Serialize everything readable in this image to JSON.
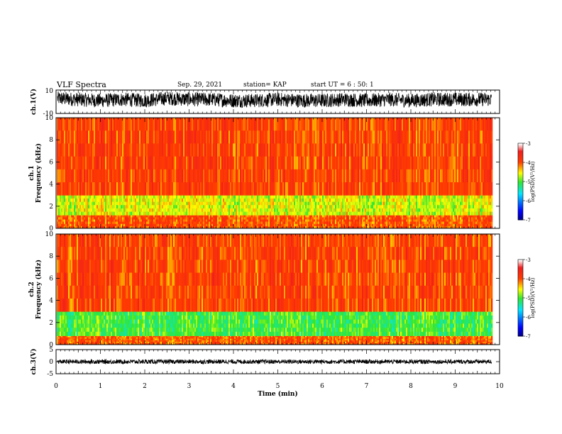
{
  "header": {
    "title": "VLF Spectra",
    "date": "Sep. 29, 2021",
    "station": "station= KAP",
    "start": "start UT =  6 : 50: 1"
  },
  "chart_data": [
    {
      "type": "line",
      "panel": "ch1-waveform",
      "ylabel": "ch.1(V)",
      "ylim": [
        -10,
        10
      ],
      "yticks": [
        "10",
        "-10"
      ],
      "xlim": [
        0,
        10
      ],
      "x": [
        0,
        0.5,
        1,
        1.5,
        2,
        2.5,
        3,
        3.5,
        4,
        4.5,
        5,
        5.5,
        6,
        6.5,
        7,
        7.5,
        8,
        8.5,
        9,
        9.5,
        9.82
      ],
      "y": [
        3,
        2,
        1,
        2,
        1,
        3,
        2,
        2,
        1,
        1,
        2,
        1,
        1,
        2,
        1,
        2,
        1,
        2,
        2,
        2,
        2
      ],
      "envelope_amplitude": 6,
      "color": "#000000"
    },
    {
      "type": "heatmap",
      "panel": "ch1-spectrogram",
      "ylabel": "ch.1\nFrequency (kHz)",
      "ylabel_line1": "ch.1",
      "ylabel_line2": "Frequency (kHz)",
      "ylim": [
        0,
        10
      ],
      "yticks": [
        "0",
        "2",
        "4",
        "6",
        "8",
        "10"
      ],
      "xlim": [
        0,
        10
      ],
      "data_end_min": 9.82,
      "colorscale": {
        "min": -7,
        "max": -3,
        "label": "log(PSD)(V²/Hz)",
        "ticks": [
          "-3",
          "-4",
          "-5",
          "-6",
          "-7"
        ]
      },
      "bands_khz": [
        {
          "from": 0.0,
          "to": 1.2,
          "level": -4.0
        },
        {
          "from": 1.2,
          "to": 3.0,
          "level": -4.6
        },
        {
          "from": 3.0,
          "to": 10.0,
          "level": -3.9
        }
      ]
    },
    {
      "type": "heatmap",
      "panel": "ch2-spectrogram",
      "ylabel": "ch.2\nFrequency (kHz)",
      "ylabel_line1": "ch.2",
      "ylabel_line2": "Frequency (kHz)",
      "ylim": [
        0,
        10
      ],
      "yticks": [
        "0",
        "2",
        "4",
        "6",
        "8",
        "10"
      ],
      "xlim": [
        0,
        10
      ],
      "data_end_min": 9.82,
      "colorscale": {
        "min": -7,
        "max": -3,
        "label": "log(PSD)(V²/Hz)",
        "ticks": [
          "-3",
          "-4",
          "-5",
          "-6",
          "-7"
        ]
      },
      "bands_khz": [
        {
          "from": 0.0,
          "to": 0.8,
          "level": -4.0
        },
        {
          "from": 0.8,
          "to": 3.0,
          "level": -5.0
        },
        {
          "from": 3.0,
          "to": 10.0,
          "level": -3.9
        }
      ]
    },
    {
      "type": "line",
      "panel": "ch3-waveform",
      "ylabel": "ch.3(V)",
      "ylim": [
        -5,
        5
      ],
      "yticks": [
        "5",
        "0",
        "-5"
      ],
      "xlim": [
        0,
        10
      ],
      "x": [
        0,
        9.82
      ],
      "y": [
        0,
        0
      ],
      "envelope_amplitude": 0.9,
      "color": "#000000"
    },
    {
      "type": "axis",
      "panel": "time-axis",
      "xlabel": "Time (min)",
      "xticks": [
        "0",
        "1",
        "2",
        "3",
        "4",
        "5",
        "6",
        "7",
        "8",
        "9",
        "10"
      ]
    }
  ]
}
